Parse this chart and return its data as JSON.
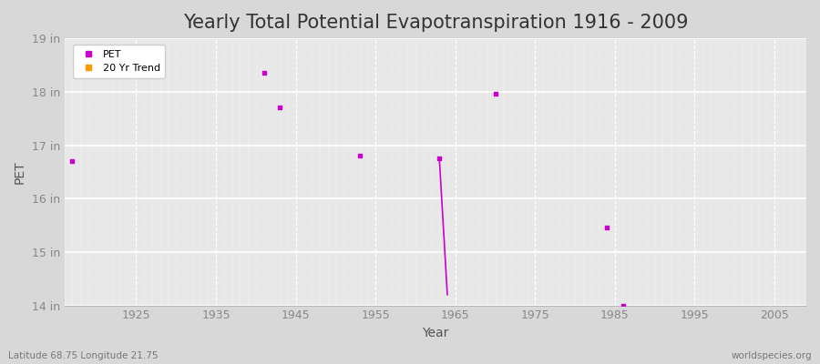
{
  "title": "Yearly Total Potential Evapotranspiration 1916 - 2009",
  "xlabel": "Year",
  "ylabel": "PET",
  "xlim": [
    1916,
    2009
  ],
  "ylim": [
    14,
    19
  ],
  "yticks": [
    14,
    15,
    16,
    17,
    18,
    19
  ],
  "ytick_labels": [
    "14 in",
    "15 in",
    "16 in",
    "17 in",
    "18 in",
    "19 in"
  ],
  "xticks": [
    1925,
    1935,
    1945,
    1955,
    1965,
    1975,
    1985,
    1995,
    2005
  ],
  "fig_bg_color": "#d8d8d8",
  "plot_bg_color": "#e8e8e8",
  "grid_major_color": "#ffffff",
  "grid_minor_color": "#ffffff",
  "pet_color": "#cc00cc",
  "trend_color": "#cc00cc",
  "legend_pet_color": "#cc00cc",
  "legend_trend_color": "#ff9900",
  "pet_points_x": [
    1917,
    1941,
    1943,
    1953,
    1963,
    1970,
    1984,
    1986
  ],
  "pet_points_y": [
    16.7,
    18.35,
    17.7,
    16.8,
    16.75,
    17.97,
    15.45,
    14.0
  ],
  "trend_line_x": [
    1963,
    1964
  ],
  "trend_line_y": [
    16.75,
    14.2
  ],
  "subtitle_left": "Latitude 68.75 Longitude 21.75",
  "subtitle_right": "worldspecies.org",
  "title_fontsize": 15,
  "axis_label_fontsize": 10,
  "tick_fontsize": 9,
  "tick_color": "#888888",
  "label_color": "#555555",
  "title_color": "#333333"
}
